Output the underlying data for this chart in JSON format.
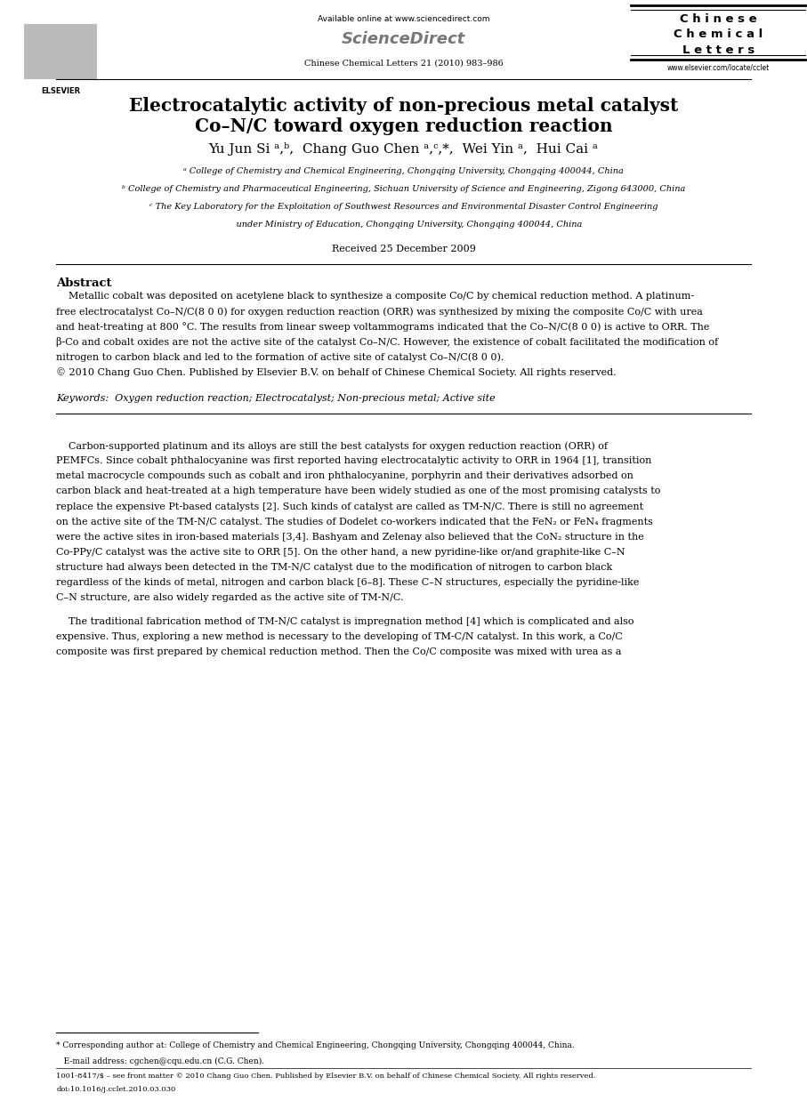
{
  "background_color": "#ffffff",
  "page_width": 9.07,
  "page_height": 12.38,
  "dpi": 100,
  "header": {
    "available_online": "Available online at www.sciencedirect.com",
    "sciencedirect": "ScienceDirect",
    "journal_ref": "Chinese Chemical Letters 21 (2010) 983–986",
    "journal_name_line1": "C h i n e s e",
    "journal_name_line2": "C h e m i c a l",
    "journal_name_line3": "L e t t e r s",
    "website": "www.elsevier.com/locate/cclet"
  },
  "title_line1": "Electrocatalytic activity of non-precious metal catalyst",
  "title_line2": "Co–N/C toward oxygen reduction reaction",
  "authors": "Yu Jun Si ᵃ,ᵇ,  Chang Guo Chen ᵃ,ᶜ,*,  Wei Yin ᵃ,  Hui Cai ᵃ",
  "affiliations": [
    "ᵃ College of Chemistry and Chemical Engineering, Chongqing University, Chongqing 400044, China",
    "ᵇ College of Chemistry and Pharmaceutical Engineering, Sichuan University of Science and Engineering, Zigong 643000, China",
    "ᶜ The Key Laboratory for the Exploitation of Southwest Resources and Environmental Disaster Control Engineering",
    "    under Ministry of Education, Chongqing University, Chongqing 400044, China"
  ],
  "received": "Received 25 December 2009",
  "abstract_title": "Abstract",
  "abstract_lines": [
    "    Metallic cobalt was deposited on acetylene black to synthesize a composite Co/C by chemical reduction method. A platinum-",
    "free electrocatalyst Co–N/C(8 0 0) for oxygen reduction reaction (ORR) was synthesized by mixing the composite Co/C with urea",
    "and heat-treating at 800 °C. The results from linear sweep voltammograms indicated that the Co–N/C(8 0 0) is active to ORR. The",
    "β-Co and cobalt oxides are not the active site of the catalyst Co–N/C. However, the existence of cobalt facilitated the modification of",
    "nitrogen to carbon black and led to the formation of active site of catalyst Co–N/C(8 0 0).",
    "© 2010 Chang Guo Chen. Published by Elsevier B.V. on behalf of Chinese Chemical Society. All rights reserved."
  ],
  "keywords": "Keywords:  Oxygen reduction reaction; Electrocatalyst; Non-precious metal; Active site",
  "body1_lines": [
    "    Carbon-supported platinum and its alloys are still the best catalysts for oxygen reduction reaction (ORR) of",
    "PEMFCs. Since cobalt phthalocyanine was first reported having electrocatalytic activity to ORR in 1964 [1], transition",
    "metal macrocycle compounds such as cobalt and iron phthalocyanine, porphyrin and their derivatives adsorbed on",
    "carbon black and heat-treated at a high temperature have been widely studied as one of the most promising catalysts to",
    "replace the expensive Pt-based catalysts [2]. Such kinds of catalyst are called as TM-N/C. There is still no agreement",
    "on the active site of the TM-N/C catalyst. The studies of Dodelet co-workers indicated that the FeN₂ or FeN₄ fragments",
    "were the active sites in iron-based materials [3,4]. Bashyam and Zelenay also believed that the CoN₂ structure in the",
    "Co-PPy/C catalyst was the active site to ORR [5]. On the other hand, a new pyridine-like or/and graphite-like C–N",
    "structure had always been detected in the TM-N/C catalyst due to the modification of nitrogen to carbon black",
    "regardless of the kinds of metal, nitrogen and carbon black [6–8]. These C–N structures, especially the pyridine-like",
    "C–N structure, are also widely regarded as the active site of TM-N/C."
  ],
  "body2_lines": [
    "    The traditional fabrication method of TM-N/C catalyst is impregnation method [4] which is complicated and also",
    "expensive. Thus, exploring a new method is necessary to the developing of TM-C/N catalyst. In this work, a Co/C",
    "composite was first prepared by chemical reduction method. Then the Co/C composite was mixed with urea as a"
  ],
  "footnote_corresponding": "* Corresponding author at: College of Chemistry and Chemical Engineering, Chongqing University, Chongqing 400044, China.",
  "footnote_email": "   E-mail address: cgchen@cqu.edu.cn (C.G. Chen).",
  "footer_line1": "1001-8417/$ – see front matter © 2010 Chang Guo Chen. Published by Elsevier B.V. on behalf of Chinese Chemical Society. All rights reserved.",
  "footer_line2": "doi:10.1016/j.cclet.2010.03.030"
}
